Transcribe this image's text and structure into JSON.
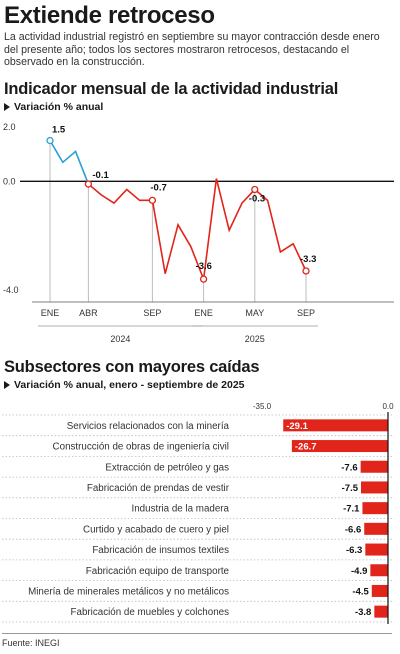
{
  "header": {
    "title": "Extiende retroceso",
    "subtitle": "La actividad industrial registró en septiembre su mayor contracción desde enero del presente año; todos los sectores mostraron retrocesos, destacando el observado en la construcción."
  },
  "chart1": {
    "title": "Indicador mensual de la actividad industrial",
    "unit": "Variación % anual"
  },
  "chart2": {
    "title": "Subsectores con mayores caídas",
    "unit": "Variación % anual, enero - septiembre de 2025"
  },
  "footer": {
    "source": "Fuente: INEGI"
  },
  "colors": {
    "red": "#e1251b",
    "blue": "#2a9fd6",
    "grid": "#d9d9d9"
  },
  "chart_data": [
    {
      "type": "line",
      "title": "Indicador mensual de la actividad industrial",
      "ylabel": "Variación % anual",
      "ylim": [
        -4.0,
        2.0
      ],
      "yticks": [
        "2.0",
        "0.0",
        "-4.0"
      ],
      "x_tick_labels": [
        "ENE",
        "ABR",
        "SEP",
        "ENE",
        "MAY",
        "SEP"
      ],
      "x_tick_index": [
        0,
        3,
        8,
        12,
        16,
        20
      ],
      "year_labels": [
        "2024",
        "2025"
      ],
      "series": [
        {
          "x": [
            "2024-01",
            "2024-02",
            "2024-03",
            "2024-04",
            "2024-05",
            "2024-06",
            "2024-07",
            "2024-08",
            "2024-09",
            "2024-10",
            "2024-11",
            "2024-12",
            "2025-01",
            "2025-02",
            "2025-03",
            "2025-04",
            "2025-05",
            "2025-06",
            "2025-07",
            "2025-08",
            "2025-09"
          ],
          "values": [
            1.5,
            0.7,
            1.1,
            -0.1,
            -0.5,
            -0.8,
            -0.3,
            -0.7,
            -0.7,
            -3.4,
            -1.6,
            -2.4,
            -3.6,
            0.1,
            -1.8,
            -0.8,
            -0.3,
            -0.7,
            -2.6,
            -2.3,
            -3.3
          ]
        }
      ],
      "labels": [
        {
          "index": 0,
          "text": "1.5"
        },
        {
          "index": 3,
          "text": "-0.1"
        },
        {
          "index": 8,
          "text": "-0.7"
        },
        {
          "index": 12,
          "text": "-3.6"
        },
        {
          "index": 16,
          "text": "-0.3"
        },
        {
          "index": 20,
          "text": "-3.3"
        }
      ]
    },
    {
      "type": "bar",
      "title": "Subsectores con mayores caídas",
      "xlabel": "Variación % anual, enero - septiembre de 2025",
      "xlim": [
        -35.0,
        0.0
      ],
      "xticks": [
        "-35.0",
        "0.0"
      ],
      "categories": [
        "Servicios relacionados con la minería",
        "Construcción de obras de ingeniería civil",
        "Extracción de petróleo y gas",
        "Fabricación de prendas de vestir",
        "Industria de la madera",
        "Curtido y acabado de cuero y piel",
        "Fabricación de insumos textiles",
        "Fabricación equipo de transporte",
        "Minería de minerales metálicos y no metálicos",
        "Fabricación de muebles y colchones"
      ],
      "values": [
        -29.1,
        -26.7,
        -7.6,
        -7.5,
        -7.1,
        -6.6,
        -6.3,
        -4.9,
        -4.5,
        -3.8
      ],
      "value_labels": [
        "-29.1",
        "-26.7",
        "-7.6",
        "-7.5",
        "-7.1",
        "-6.6",
        "-6.3",
        "-4.9",
        "-4.5",
        "-3.8"
      ]
    }
  ]
}
